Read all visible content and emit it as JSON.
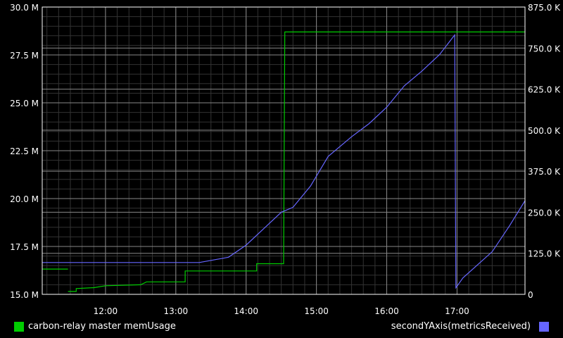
{
  "chart_data": {
    "type": "line",
    "title": "",
    "grid": true,
    "colors": {
      "background": "#000000",
      "grid": "#888888",
      "axis": "#ffffff"
    },
    "x": {
      "min": "11:06",
      "max": "17:58",
      "ticks": [
        "12:00",
        "13:00",
        "14:00",
        "15:00",
        "16:00",
        "17:00"
      ]
    },
    "y_left": {
      "min": 15.0,
      "max": 30.0,
      "ticks": [
        15.0,
        17.5,
        20.0,
        22.5,
        25.0,
        27.5,
        30.0
      ],
      "tick_labels": [
        "15.0 M",
        "17.5 M",
        "20.0 M",
        "22.5 M",
        "25.0 M",
        "27.5 M",
        "30.0 M"
      ],
      "unit": "M"
    },
    "y_right": {
      "min": 0,
      "max": 875,
      "ticks": [
        0,
        125,
        250,
        375,
        500,
        625,
        750,
        875
      ],
      "tick_labels": [
        "0",
        "125.0 K",
        "250.0 K",
        "375.0 K",
        "500.0 K",
        "625.0 K",
        "750.0 K",
        "875.0 K"
      ],
      "unit": "K"
    },
    "legend_placement": "bottom",
    "series": [
      {
        "name": "carbon-relay master memUsage",
        "color": "#00cc00",
        "axis": "left",
        "points": [
          [
            "11:06",
            16.32
          ],
          [
            "11:28",
            16.32
          ],
          [
            null,
            null
          ],
          [
            "11:28",
            15.15
          ],
          [
            "11:35",
            15.15
          ],
          [
            "11:35",
            15.3
          ],
          [
            "11:50",
            15.35
          ],
          [
            "12:00",
            15.45
          ],
          [
            "12:30",
            15.5
          ],
          [
            "12:35",
            15.65
          ],
          [
            "13:08",
            15.65
          ],
          [
            "13:08",
            16.22
          ],
          [
            "14:09",
            16.22
          ],
          [
            "14:09",
            16.6
          ],
          [
            "14:32",
            16.6
          ],
          [
            "14:33",
            28.7
          ],
          [
            "17:58",
            28.7
          ]
        ]
      },
      {
        "name": "secondYAxis(metricsReceived)",
        "color": "#6666ff",
        "axis": "right",
        "points": [
          [
            "11:06",
            97
          ],
          [
            "13:20",
            97
          ],
          [
            "13:45",
            113
          ],
          [
            "14:00",
            150
          ],
          [
            "14:12",
            190
          ],
          [
            "14:30",
            250
          ],
          [
            "14:40",
            265
          ],
          [
            "14:55",
            330
          ],
          [
            "15:10",
            420
          ],
          [
            "15:30",
            480
          ],
          [
            "15:45",
            520
          ],
          [
            "16:00",
            570
          ],
          [
            "16:15",
            635
          ],
          [
            "16:30",
            680
          ],
          [
            "16:45",
            730
          ],
          [
            "16:58",
            790
          ],
          [
            "16:59",
            20
          ],
          [
            "17:05",
            50
          ],
          [
            "17:30",
            130
          ],
          [
            "17:45",
            210
          ],
          [
            "17:58",
            285
          ]
        ]
      }
    ]
  }
}
